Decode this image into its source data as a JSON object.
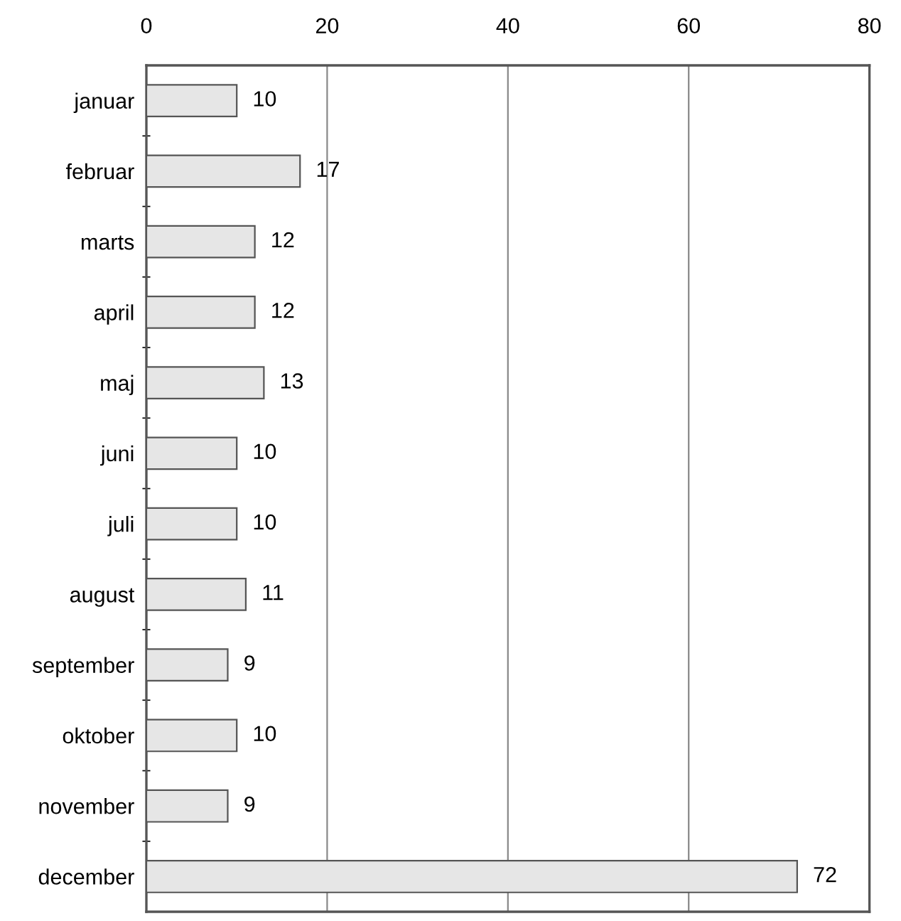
{
  "chart_data": {
    "type": "bar",
    "orientation": "horizontal",
    "categories": [
      "januar",
      "februar",
      "marts",
      "april",
      "maj",
      "juni",
      "juli",
      "august",
      "september",
      "oktober",
      "november",
      "december"
    ],
    "values": [
      10,
      17,
      12,
      12,
      13,
      10,
      10,
      11,
      9,
      10,
      9,
      72
    ],
    "color": "#e6e6e6",
    "xlim": [
      0,
      80
    ],
    "xticks": [
      0,
      20,
      40,
      60,
      80
    ],
    "grid": "x",
    "data_labels": true,
    "legend": false
  }
}
